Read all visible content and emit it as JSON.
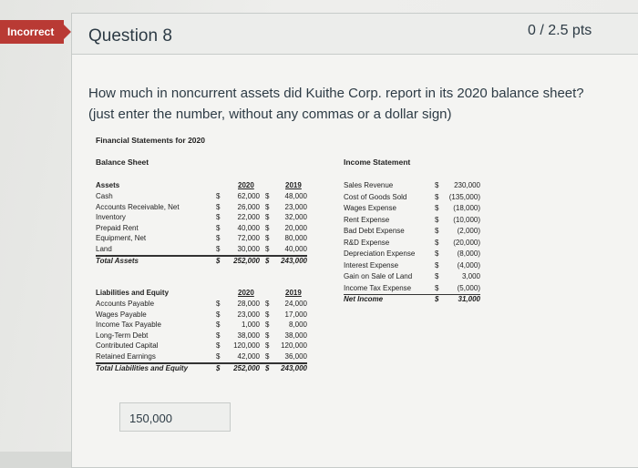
{
  "status_badge": "Incorrect",
  "question": {
    "title": "Question 8",
    "points": "0 / 2.5 pts",
    "text": "How much in noncurrent assets did Kuithe Corp. report in its 2020 balance sheet? (just enter the number, without any commas or a dollar sign)",
    "answer": "150,000"
  },
  "statements": {
    "title": "Financial Statements for 2020",
    "balance_sheet": {
      "title": "Balance Sheet",
      "assets": {
        "header": "Assets",
        "col1": "2020",
        "col2": "2019",
        "rows": [
          {
            "label": "Cash",
            "s1": "$",
            "v1": "62,000",
            "s2": "$",
            "v2": "48,000"
          },
          {
            "label": "Accounts Receivable, Net",
            "s1": "$",
            "v1": "26,000",
            "s2": "$",
            "v2": "23,000"
          },
          {
            "label": "Inventory",
            "s1": "$",
            "v1": "22,000",
            "s2": "$",
            "v2": "32,000"
          },
          {
            "label": "Prepaid Rent",
            "s1": "$",
            "v1": "40,000",
            "s2": "$",
            "v2": "20,000"
          },
          {
            "label": "Equipment, Net",
            "s1": "$",
            "v1": "72,000",
            "s2": "$",
            "v2": "80,000"
          },
          {
            "label": "Land",
            "s1": "$",
            "v1": "30,000",
            "s2": "$",
            "v2": "40,000"
          }
        ],
        "total": {
          "label": "Total Assets",
          "s1": "$",
          "v1": "252,000",
          "s2": "$",
          "v2": "243,000"
        }
      },
      "liabilities": {
        "header": "Liabilities and Equity",
        "col1": "2020",
        "col2": "2019",
        "rows": [
          {
            "label": "Accounts Payable",
            "s1": "$",
            "v1": "28,000",
            "s2": "$",
            "v2": "24,000"
          },
          {
            "label": "Wages Payable",
            "s1": "$",
            "v1": "23,000",
            "s2": "$",
            "v2": "17,000"
          },
          {
            "label": "Income Tax Payable",
            "s1": "$",
            "v1": "1,000",
            "s2": "$",
            "v2": "8,000"
          },
          {
            "label": "Long-Term Debt",
            "s1": "$",
            "v1": "38,000",
            "s2": "$",
            "v2": "38,000"
          },
          {
            "label": "Contributed Capital",
            "s1": "$",
            "v1": "120,000",
            "s2": "$",
            "v2": "120,000"
          },
          {
            "label": "Retained Earnings",
            "s1": "$",
            "v1": "42,000",
            "s2": "$",
            "v2": "36,000"
          }
        ],
        "total": {
          "label": "Total Liabilities and Equity",
          "s1": "$",
          "v1": "252,000",
          "s2": "$",
          "v2": "243,000"
        }
      }
    },
    "income_statement": {
      "title": "Income Statement",
      "rows": [
        {
          "label": "Sales Revenue",
          "s": "$",
          "v": "230,000"
        },
        {
          "label": "Cost of Goods Sold",
          "s": "$",
          "v": "(135,000)"
        },
        {
          "label": "Wages Expense",
          "s": "$",
          "v": "(18,000)"
        },
        {
          "label": "Rent Expense",
          "s": "$",
          "v": "(10,000)"
        },
        {
          "label": "Bad Debt Expense",
          "s": "$",
          "v": "(2,000)"
        },
        {
          "label": "R&D Expense",
          "s": "$",
          "v": "(20,000)"
        },
        {
          "label": "Depreciation Expense",
          "s": "$",
          "v": "(8,000)"
        },
        {
          "label": "Interest Expense",
          "s": "$",
          "v": "(4,000)"
        },
        {
          "label": "Gain on Sale of Land",
          "s": "$",
          "v": "3,000"
        },
        {
          "label": "Income Tax Expense",
          "s": "$",
          "v": "(5,000)"
        }
      ],
      "net": {
        "label": "Net Income",
        "s": "$",
        "v": "31,000"
      }
    }
  }
}
